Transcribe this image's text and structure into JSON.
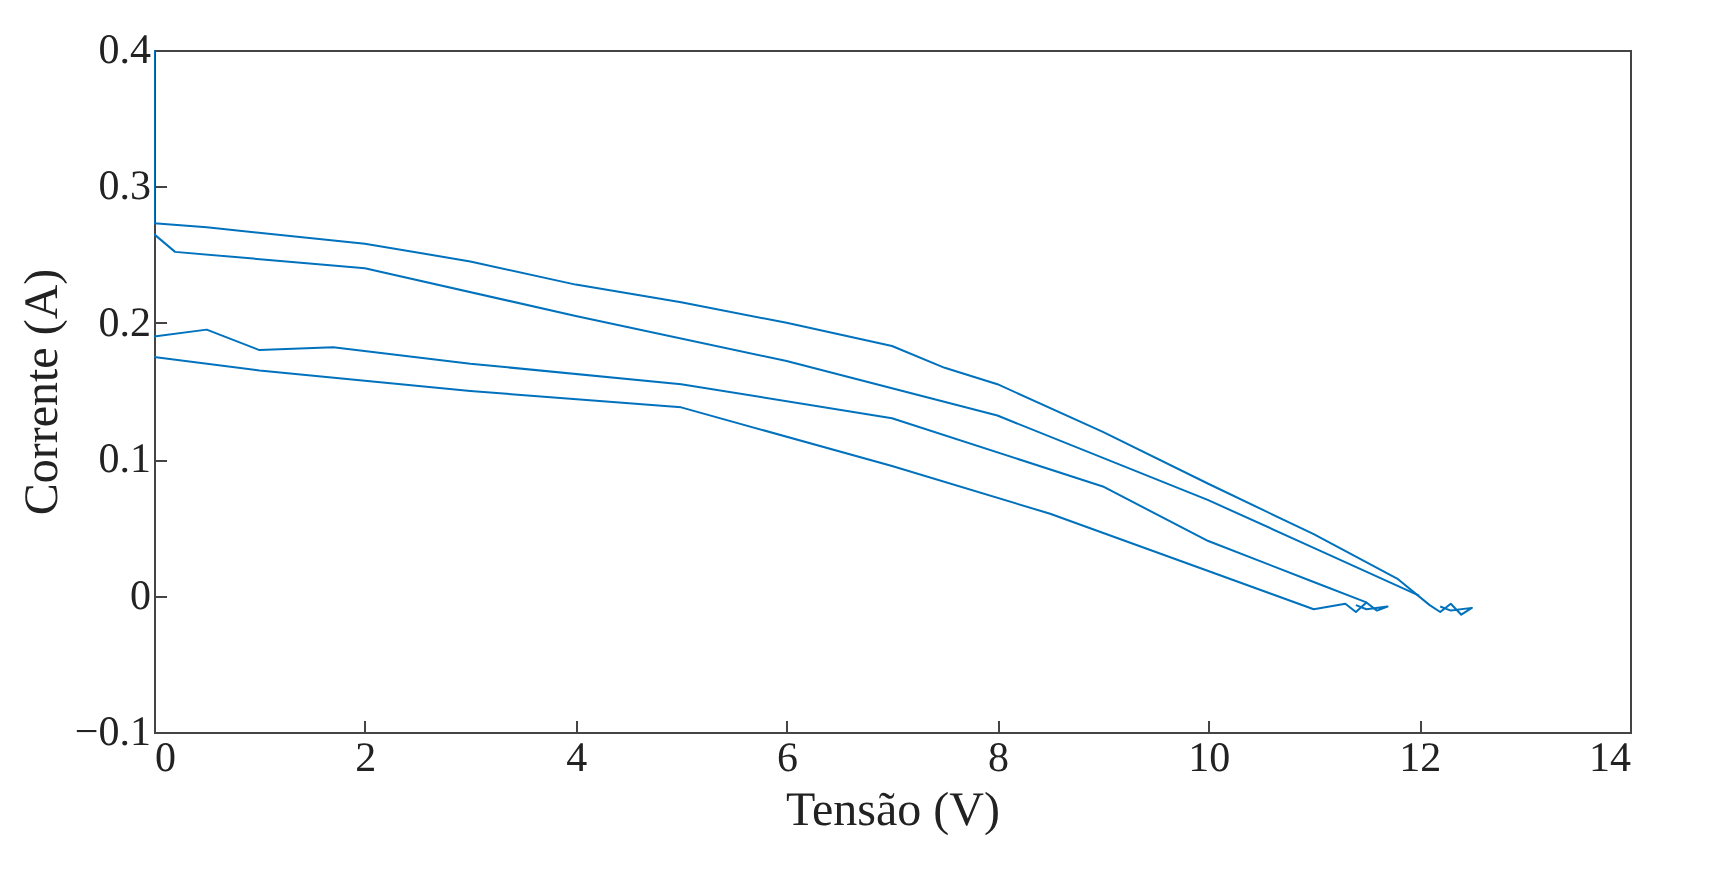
{
  "chart_data": {
    "type": "line",
    "xlabel": "Tensão (V)",
    "ylabel": "Corrente (A)",
    "xlim": [
      0,
      14
    ],
    "ylim": [
      -0.1,
      0.4
    ],
    "xticks": [
      0,
      2,
      4,
      6,
      8,
      10,
      12,
      14
    ],
    "yticks": [
      -0.1,
      0,
      0.1,
      0.2,
      0.3,
      0.4
    ],
    "grid": false,
    "legend": false,
    "marker": "none",
    "line_style": "solid",
    "series": [
      {
        "color": "#0072bd",
        "x": [
          0,
          0,
          0.5,
          2,
          3,
          4,
          5,
          6,
          7,
          7.5,
          8,
          9,
          10,
          11,
          11.8,
          12.1,
          12.2,
          12.3,
          12.4,
          12.5,
          12.3,
          12.2
        ],
        "values": [
          0.4,
          0.273,
          0.27,
          0.258,
          0.245,
          0.228,
          0.215,
          0.2,
          0.183,
          0.167,
          0.155,
          0.12,
          0.082,
          0.045,
          0.012,
          -0.007,
          -0.012,
          -0.006,
          -0.014,
          -0.009,
          -0.011,
          -0.008
        ]
      },
      {
        "color": "#0072bd",
        "x": [
          0,
          0.2,
          2,
          4,
          6,
          8,
          10,
          11,
          12
        ],
        "values": [
          0.265,
          0.252,
          0.24,
          0.205,
          0.172,
          0.132,
          0.07,
          0.035,
          0.0
        ]
      },
      {
        "color": "#0072bd",
        "x": [
          0,
          0.5,
          1,
          1.7,
          3,
          5,
          7,
          9,
          10,
          11,
          11.5
        ],
        "values": [
          0.19,
          0.195,
          0.18,
          0.182,
          0.17,
          0.155,
          0.13,
          0.08,
          0.04,
          0.01,
          -0.005
        ]
      },
      {
        "color": "#0072bd",
        "x": [
          0,
          1,
          3,
          5,
          7,
          8.5,
          10,
          11,
          11.3,
          11.4,
          11.5,
          11.6,
          11.7,
          11.5,
          11.4
        ],
        "values": [
          0.175,
          0.165,
          0.15,
          0.138,
          0.095,
          0.06,
          0.018,
          -0.01,
          -0.006,
          -0.012,
          -0.005,
          -0.011,
          -0.008,
          -0.01,
          -0.007
        ]
      }
    ]
  }
}
